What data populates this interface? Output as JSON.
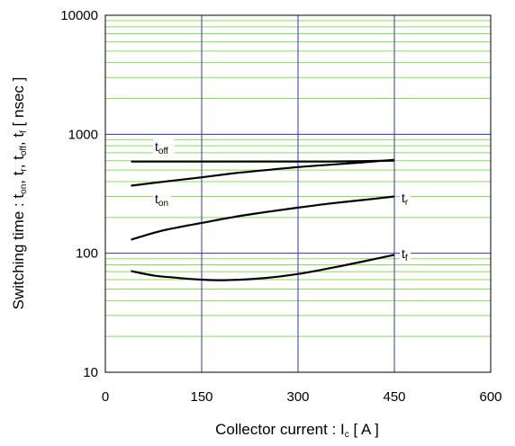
{
  "chart_data": {
    "type": "line",
    "xlabel": "Collector current : I",
    "xlabel_sub": "c",
    "xlabel_unit": " [ A ]",
    "ylabel_parts": [
      {
        "t": "Switching time : t"
      },
      {
        "t": "on",
        "sub": true
      },
      {
        "t": ", t"
      },
      {
        "t": "r",
        "sub": true
      },
      {
        "t": ", t"
      },
      {
        "t": "off",
        "sub": true
      },
      {
        "t": ", t"
      },
      {
        "t": "f",
        "sub": true
      },
      {
        "t": " [ nsec ]"
      }
    ],
    "xlim": [
      0,
      600
    ],
    "ylim": [
      10,
      10000
    ],
    "yscale": "log",
    "xticks": [
      0,
      150,
      300,
      450,
      600
    ],
    "xtick_labels": [
      "0",
      "150",
      "300",
      "450",
      "600"
    ],
    "yticks": [
      10,
      100,
      1000,
      10000
    ],
    "ytick_labels": [
      "10",
      "100",
      "1000",
      "10000"
    ],
    "grid": true,
    "colors": {
      "major_grid": "#3333bb",
      "minor_grid": "#88dd55",
      "axes": "#000000",
      "curve": "#000000"
    },
    "series": [
      {
        "name": "toff",
        "label_main": "t",
        "label_sub": "off",
        "x": [
          40,
          100,
          150,
          200,
          250,
          300,
          350,
          400,
          450
        ],
        "y": [
          590,
          590,
          590,
          590,
          590,
          590,
          590,
          595,
          600
        ]
      },
      {
        "name": "ton",
        "label_main": "t",
        "label_sub": "on",
        "x": [
          40,
          100,
          150,
          200,
          250,
          300,
          350,
          400,
          450
        ],
        "y": [
          370,
          405,
          435,
          470,
          500,
          530,
          555,
          580,
          610
        ]
      },
      {
        "name": "tr",
        "label_main": "t",
        "label_sub": "r",
        "x": [
          40,
          75,
          100,
          150,
          200,
          250,
          300,
          350,
          400,
          450
        ],
        "y": [
          130,
          148,
          160,
          180,
          202,
          222,
          242,
          262,
          280,
          300
        ]
      },
      {
        "name": "tf",
        "label_main": "t",
        "label_sub": "f",
        "x": [
          40,
          75,
          100,
          150,
          190,
          250,
          300,
          350,
          400,
          450
        ],
        "y": [
          71,
          65,
          63,
          60,
          59.5,
          62,
          67,
          75,
          85,
          97
        ]
      }
    ]
  }
}
